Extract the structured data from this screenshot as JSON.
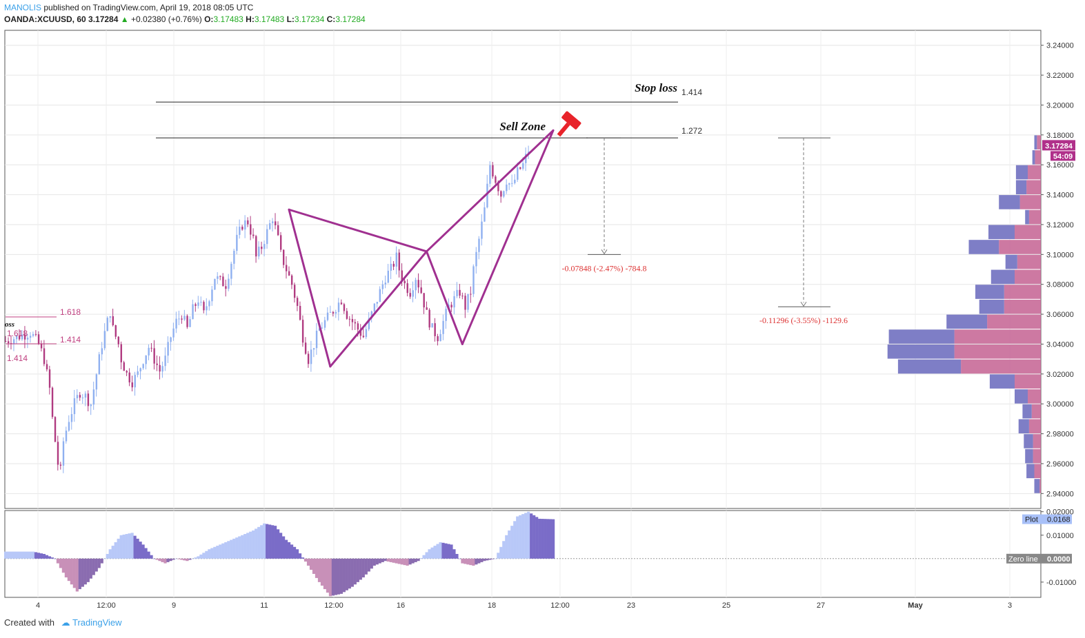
{
  "header": {
    "author": "MANOLIS",
    "published": " published on TradingView.com, April 19, 2018 08:05 UTC",
    "symbol": "OANDA:XCUUSD, 60",
    "last": "3.17284",
    "change": "+0.02380 (+0.76%)",
    "o_label": "O:",
    "o": "3.17483",
    "h_label": "H:",
    "h": "3.17483",
    "l_label": "L:",
    "l": "3.17234",
    "c_label": "C:",
    "c": "3.17284"
  },
  "footer": {
    "created_with": "Created with",
    "brand": "TradingView"
  },
  "colors": {
    "pattern": "#a03090",
    "bull": "#8fb0f0",
    "bear": "#b03a80",
    "vp_blue": "#7070c0",
    "vp_pink": "#c86a98",
    "ref": "#c04080",
    "measure": "#dd3333"
  },
  "chart_data": [
    {
      "type": "candlestick",
      "symbol": "OANDA:XCUUSD",
      "timeframe": "60",
      "ylim": [
        2.93,
        3.25
      ],
      "y_ticks": [
        "3.24000",
        "3.22000",
        "3.20000",
        "3.18000",
        "3.16000",
        "3.14000",
        "3.12000",
        "3.10000",
        "3.08000",
        "3.06000",
        "3.04000",
        "3.02000",
        "3.00000",
        "2.98000",
        "2.96000",
        "2.94000"
      ],
      "x_ticks": [
        "4",
        "12:00",
        "9",
        "11",
        "12:00",
        "16",
        "18",
        "12:00",
        "23",
        "25",
        "27",
        "May",
        "3"
      ],
      "last_price_label": "3.17284",
      "countdown_label": "54:09",
      "price_path": [
        [
          0,
          3.042
        ],
        [
          3,
          3.044
        ],
        [
          6,
          3.046
        ],
        [
          9,
          3.048
        ],
        [
          12,
          3.04
        ],
        [
          14,
          3.03
        ],
        [
          16,
          3.01
        ],
        [
          17,
          2.99
        ],
        [
          18,
          2.975
        ],
        [
          19,
          2.96
        ],
        [
          20,
          2.955
        ],
        [
          21,
          2.975
        ],
        [
          23,
          2.99
        ],
        [
          25,
          3.0
        ],
        [
          27,
          3.008
        ],
        [
          29,
          3.005
        ],
        [
          31,
          3.0
        ],
        [
          33,
          3.02
        ],
        [
          35,
          3.04
        ],
        [
          37,
          3.055
        ],
        [
          38,
          3.062
        ],
        [
          39,
          3.05
        ],
        [
          41,
          3.04
        ],
        [
          42,
          3.03
        ],
        [
          44,
          3.02
        ],
        [
          46,
          3.015
        ],
        [
          48,
          3.02
        ],
        [
          50,
          3.03
        ],
        [
          52,
          3.038
        ],
        [
          54,
          3.03
        ],
        [
          56,
          3.022
        ],
        [
          58,
          3.03
        ],
        [
          60,
          3.045
        ],
        [
          62,
          3.055
        ],
        [
          64,
          3.06
        ],
        [
          66,
          3.05
        ],
        [
          68,
          3.063
        ],
        [
          70,
          3.07
        ],
        [
          72,
          3.06
        ],
        [
          74,
          3.072
        ],
        [
          76,
          3.085
        ],
        [
          78,
          3.082
        ],
        [
          80,
          3.08
        ],
        [
          82,
          3.095
        ],
        [
          84,
          3.11
        ],
        [
          86,
          3.12
        ],
        [
          88,
          3.122
        ],
        [
          90,
          3.11
        ],
        [
          91,
          3.098
        ],
        [
          93,
          3.105
        ],
        [
          95,
          3.115
        ],
        [
          97,
          3.125
        ],
        [
          99,
          3.11
        ],
        [
          100,
          3.1
        ],
        [
          102,
          3.09
        ],
        [
          104,
          3.08
        ],
        [
          106,
          3.065
        ],
        [
          108,
          3.045
        ],
        [
          110,
          3.03
        ],
        [
          112,
          3.04
        ],
        [
          114,
          3.05
        ],
        [
          116,
          3.055
        ],
        [
          118,
          3.06
        ],
        [
          120,
          3.065
        ],
        [
          122,
          3.07
        ],
        [
          124,
          3.06
        ],
        [
          126,
          3.055
        ],
        [
          128,
          3.05
        ],
        [
          130,
          3.045
        ],
        [
          132,
          3.055
        ],
        [
          134,
          3.065
        ],
        [
          136,
          3.075
        ],
        [
          138,
          3.085
        ],
        [
          140,
          3.09
        ],
        [
          142,
          3.098
        ],
        [
          143,
          3.09
        ],
        [
          145,
          3.08
        ],
        [
          147,
          3.075
        ],
        [
          149,
          3.085
        ],
        [
          151,
          3.075
        ],
        [
          153,
          3.06
        ],
        [
          155,
          3.05
        ],
        [
          157,
          3.045
        ],
        [
          159,
          3.055
        ],
        [
          161,
          3.065
        ],
        [
          163,
          3.07
        ],
        [
          165,
          3.075
        ],
        [
          167,
          3.065
        ],
        [
          169,
          3.075
        ],
        [
          170,
          3.09
        ],
        [
          172,
          3.11
        ],
        [
          174,
          3.13
        ],
        [
          175,
          3.145
        ],
        [
          176,
          3.16
        ],
        [
          178,
          3.15
        ],
        [
          180,
          3.14
        ],
        [
          182,
          3.15
        ],
        [
          184,
          3.145
        ],
        [
          186,
          3.155
        ],
        [
          188,
          3.16
        ],
        [
          189,
          3.165
        ],
        [
          190,
          3.17
        ]
      ],
      "harmonic_pattern": {
        "points": [
          [
            103,
            3.13
          ],
          [
            118,
            3.025
          ],
          [
            153,
            3.102
          ],
          [
            166,
            3.04
          ],
          [
            199,
            3.183
          ]
        ]
      },
      "fib_levels": [
        {
          "label": "1.414",
          "value": 3.202,
          "annotation": "Stop loss"
        },
        {
          "label": "1.272",
          "value": 3.178,
          "annotation": "Sell Zone"
        }
      ],
      "left_fib_labels": [
        "1.618",
        "1.414"
      ],
      "left_edge_labels": [
        "oss",
        "1.618",
        "1.414"
      ],
      "measurements": [
        {
          "label": "-0.07848 (-2.47%) -784.8",
          "from": 3.178,
          "to": 3.1
        },
        {
          "label": "-0.11296 (-3.55%) -1129.6",
          "from": 3.178,
          "to": 3.065
        }
      ],
      "volume_profile": [
        {
          "price": 3.175,
          "blue": 4,
          "pink": 6
        },
        {
          "price": 3.165,
          "blue": 4,
          "pink": 9
        },
        {
          "price": 3.155,
          "blue": 18,
          "pink": 20
        },
        {
          "price": 3.145,
          "blue": 16,
          "pink": 22
        },
        {
          "price": 3.135,
          "blue": 32,
          "pink": 32
        },
        {
          "price": 3.125,
          "blue": 6,
          "pink": 18
        },
        {
          "price": 3.115,
          "blue": 40,
          "pink": 40
        },
        {
          "price": 3.105,
          "blue": 46,
          "pink": 64
        },
        {
          "price": 3.095,
          "blue": 18,
          "pink": 36
        },
        {
          "price": 3.085,
          "blue": 36,
          "pink": 40
        },
        {
          "price": 3.075,
          "blue": 44,
          "pink": 56
        },
        {
          "price": 3.065,
          "blue": 38,
          "pink": 56
        },
        {
          "price": 3.055,
          "blue": 62,
          "pink": 82
        },
        {
          "price": 3.045,
          "blue": 100,
          "pink": 132
        },
        {
          "price": 3.035,
          "blue": 102,
          "pink": 132
        },
        {
          "price": 3.025,
          "blue": 96,
          "pink": 122
        },
        {
          "price": 3.015,
          "blue": 38,
          "pink": 40
        },
        {
          "price": 3.005,
          "blue": 20,
          "pink": 20
        },
        {
          "price": 2.995,
          "blue": 14,
          "pink": 14
        },
        {
          "price": 2.985,
          "blue": 16,
          "pink": 18
        },
        {
          "price": 2.975,
          "blue": 14,
          "pink": 12
        },
        {
          "price": 2.965,
          "blue": 12,
          "pink": 12
        },
        {
          "price": 2.955,
          "blue": 12,
          "pink": 10
        },
        {
          "price": 2.945,
          "blue": 8,
          "pink": 2
        }
      ]
    },
    {
      "type": "histogram",
      "name": "oscillator",
      "ylim": [
        -0.0165,
        0.0205
      ],
      "y_ticks": [
        "0.02000",
        "0.01000",
        "-0.01000"
      ],
      "plot_label": "Plot",
      "plot_value": "0.0168",
      "zero_label": "Zero line",
      "zero_value": "0.0000",
      "values": [
        [
          0,
          0.003
        ],
        [
          10,
          0.003
        ],
        [
          14,
          0.002
        ],
        [
          18,
          0.0
        ],
        [
          22,
          -0.008
        ],
        [
          26,
          -0.014
        ],
        [
          30,
          -0.01
        ],
        [
          34,
          -0.004
        ],
        [
          38,
          0.004
        ],
        [
          42,
          0.01
        ],
        [
          46,
          0.011
        ],
        [
          50,
          0.006
        ],
        [
          54,
          0.0
        ],
        [
          58,
          -0.002
        ],
        [
          62,
          0.0
        ],
        [
          66,
          -0.001
        ],
        [
          70,
          0.001
        ],
        [
          74,
          0.004
        ],
        [
          78,
          0.006
        ],
        [
          82,
          0.008
        ],
        [
          86,
          0.01
        ],
        [
          90,
          0.012
        ],
        [
          94,
          0.015
        ],
        [
          98,
          0.014
        ],
        [
          102,
          0.008
        ],
        [
          106,
          0.004
        ],
        [
          110,
          -0.003
        ],
        [
          114,
          -0.01
        ],
        [
          118,
          -0.016
        ],
        [
          122,
          -0.015
        ],
        [
          126,
          -0.012
        ],
        [
          130,
          -0.008
        ],
        [
          134,
          -0.003
        ],
        [
          138,
          -0.001
        ],
        [
          142,
          -0.002
        ],
        [
          146,
          -0.003
        ],
        [
          150,
          -0.001
        ],
        [
          154,
          0.004
        ],
        [
          158,
          0.007
        ],
        [
          162,
          0.006
        ],
        [
          166,
          -0.002
        ],
        [
          170,
          -0.003
        ],
        [
          174,
          -0.001
        ],
        [
          178,
          0.0
        ],
        [
          182,
          0.01
        ],
        [
          186,
          0.018
        ],
        [
          190,
          0.02
        ],
        [
          194,
          0.017
        ],
        [
          199,
          0.0168
        ]
      ]
    }
  ]
}
